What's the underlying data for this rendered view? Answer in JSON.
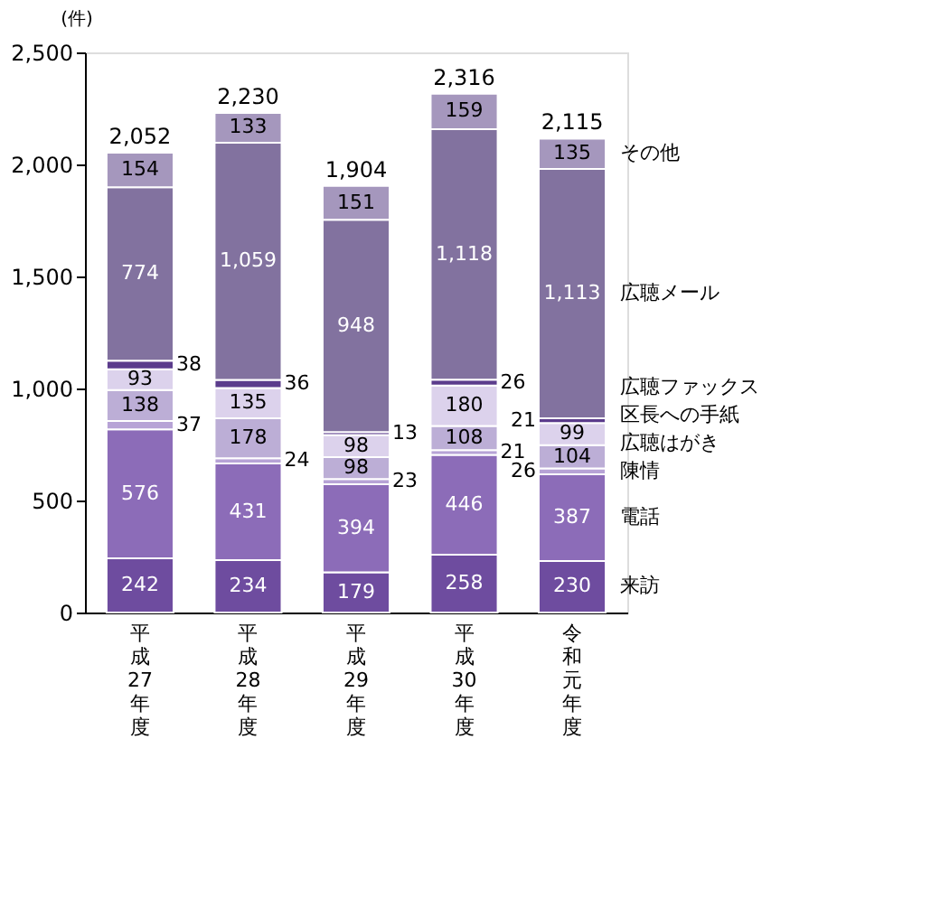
{
  "chart_data": {
    "type": "bar",
    "stacked": true,
    "ylabel": "(件)",
    "categories": [
      "平成27年度",
      "平成28年度",
      "平成29年度",
      "平成30年度",
      "令和元年度"
    ],
    "series": [
      {
        "name": "来訪",
        "color": "#6e4c9f",
        "values": [
          242,
          234,
          179,
          258,
          230
        ],
        "value_labels": [
          "242",
          "234",
          "179",
          "258",
          "230"
        ]
      },
      {
        "name": "電話",
        "color": "#8c6cb8",
        "values": [
          576,
          431,
          394,
          446,
          387
        ],
        "value_labels": [
          "576",
          "431",
          "394",
          "446",
          "387"
        ]
      },
      {
        "name": "陳情",
        "color": "#b7a3d6",
        "values": [
          37,
          24,
          23,
          21,
          26
        ],
        "value_labels": [
          "37",
          "24",
          "23",
          "21",
          "26"
        ]
      },
      {
        "name": "広聴はがき",
        "color": "#bcaed6",
        "values": [
          138,
          178,
          98,
          108,
          104
        ],
        "value_labels": [
          "138",
          "178",
          "98",
          "108",
          "104"
        ]
      },
      {
        "name": "区長への手紙",
        "color": "#dcd2ec",
        "values": [
          93,
          135,
          98,
          180,
          99
        ],
        "value_labels": [
          "93",
          "135",
          "98",
          "180",
          "99"
        ]
      },
      {
        "name": "広聴ファックス",
        "color": "#5b3c8c",
        "values": [
          38,
          36,
          13,
          26,
          21
        ],
        "value_labels": [
          "38",
          "36",
          "13",
          "26",
          "21"
        ]
      },
      {
        "name": "広聴メール",
        "color": "#82729f",
        "values": [
          774,
          1059,
          948,
          1118,
          1113
        ],
        "value_labels": [
          "774",
          "1,059",
          "948",
          "1,118",
          "1,113"
        ]
      },
      {
        "name": "その他",
        "color": "#a597bd",
        "values": [
          154,
          133,
          151,
          159,
          135
        ],
        "value_labels": [
          "154",
          "133",
          "151",
          "159",
          "135"
        ]
      }
    ],
    "totals": [
      "2,052",
      "2,230",
      "1,904",
      "2,316",
      "2,115"
    ],
    "ylim": [
      0,
      2500
    ],
    "yticks": [
      0,
      {
        "value": 500,
        "label": "500"
      },
      {
        "value": 1000,
        "label": "1,000"
      },
      {
        "value": 1500,
        "label": "1,500"
      },
      {
        "value": 2000,
        "label": "2,000"
      },
      {
        "value": 2500,
        "label": "2,500"
      }
    ],
    "grid": false,
    "legend": false
  }
}
